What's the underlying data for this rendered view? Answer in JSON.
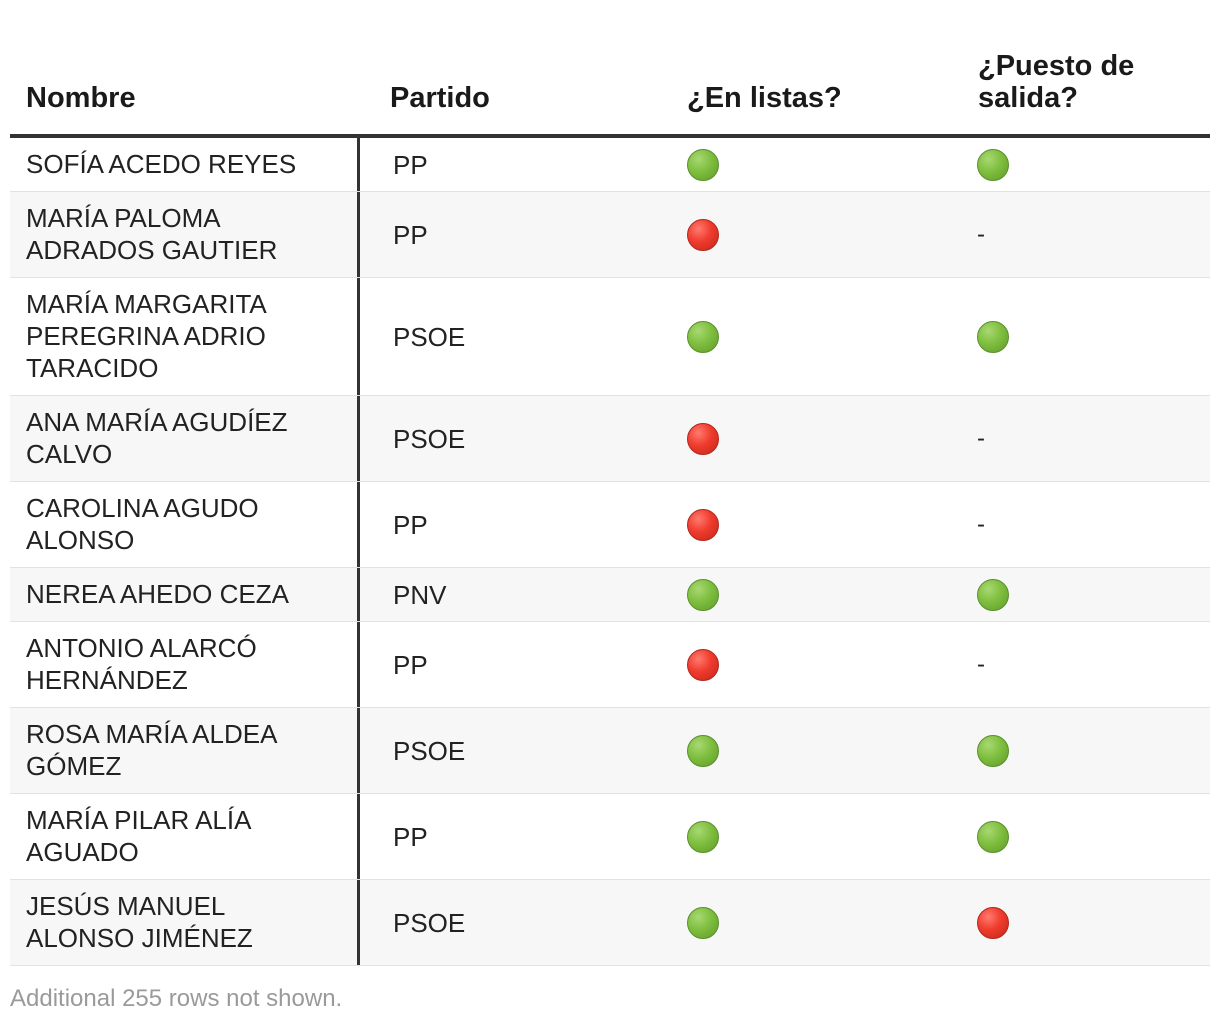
{
  "table": {
    "headers": {
      "name": "Nombre",
      "party": "Partido",
      "in_lists": "¿En listas?",
      "exit_position": "¿Puesto de salida?"
    },
    "rows": [
      {
        "name": "SOFÍA ACEDO REYES",
        "party": "PP",
        "in_lists": "yes",
        "exit_position": "yes"
      },
      {
        "name": "MARÍA PALOMA ADRADOS GAUTIER",
        "party": "PP",
        "in_lists": "no",
        "exit_position": "-"
      },
      {
        "name": "MARÍA MARGARITA PEREGRINA ADRIO TARACIDO",
        "party": "PSOE",
        "in_lists": "yes",
        "exit_position": "yes"
      },
      {
        "name": "ANA MARÍA AGUDÍEZ CALVO",
        "party": "PSOE",
        "in_lists": "no",
        "exit_position": "-"
      },
      {
        "name": "CAROLINA AGUDO ALONSO",
        "party": "PP",
        "in_lists": "no",
        "exit_position": "-"
      },
      {
        "name": "NEREA AHEDO CEZA",
        "party": "PNV",
        "in_lists": "yes",
        "exit_position": "yes"
      },
      {
        "name": "ANTONIO ALARCÓ HERNÁNDEZ",
        "party": "PP",
        "in_lists": "no",
        "exit_position": "-"
      },
      {
        "name": "ROSA MARÍA ALDEA GÓMEZ",
        "party": "PSOE",
        "in_lists": "yes",
        "exit_position": "yes"
      },
      {
        "name": "MARÍA PILAR ALÍA AGUADO",
        "party": "PP",
        "in_lists": "yes",
        "exit_position": "yes"
      },
      {
        "name": "JESÚS MANUEL ALONSO JIMÉNEZ",
        "party": "PSOE",
        "in_lists": "yes",
        "exit_position": "no"
      }
    ],
    "colors": {
      "yes": "#7fbf3f",
      "no": "#ef3b2d"
    },
    "icons": {
      "yes": "green-circle-icon",
      "no": "red-circle-icon"
    }
  },
  "footnote": "Additional 255 rows not shown."
}
